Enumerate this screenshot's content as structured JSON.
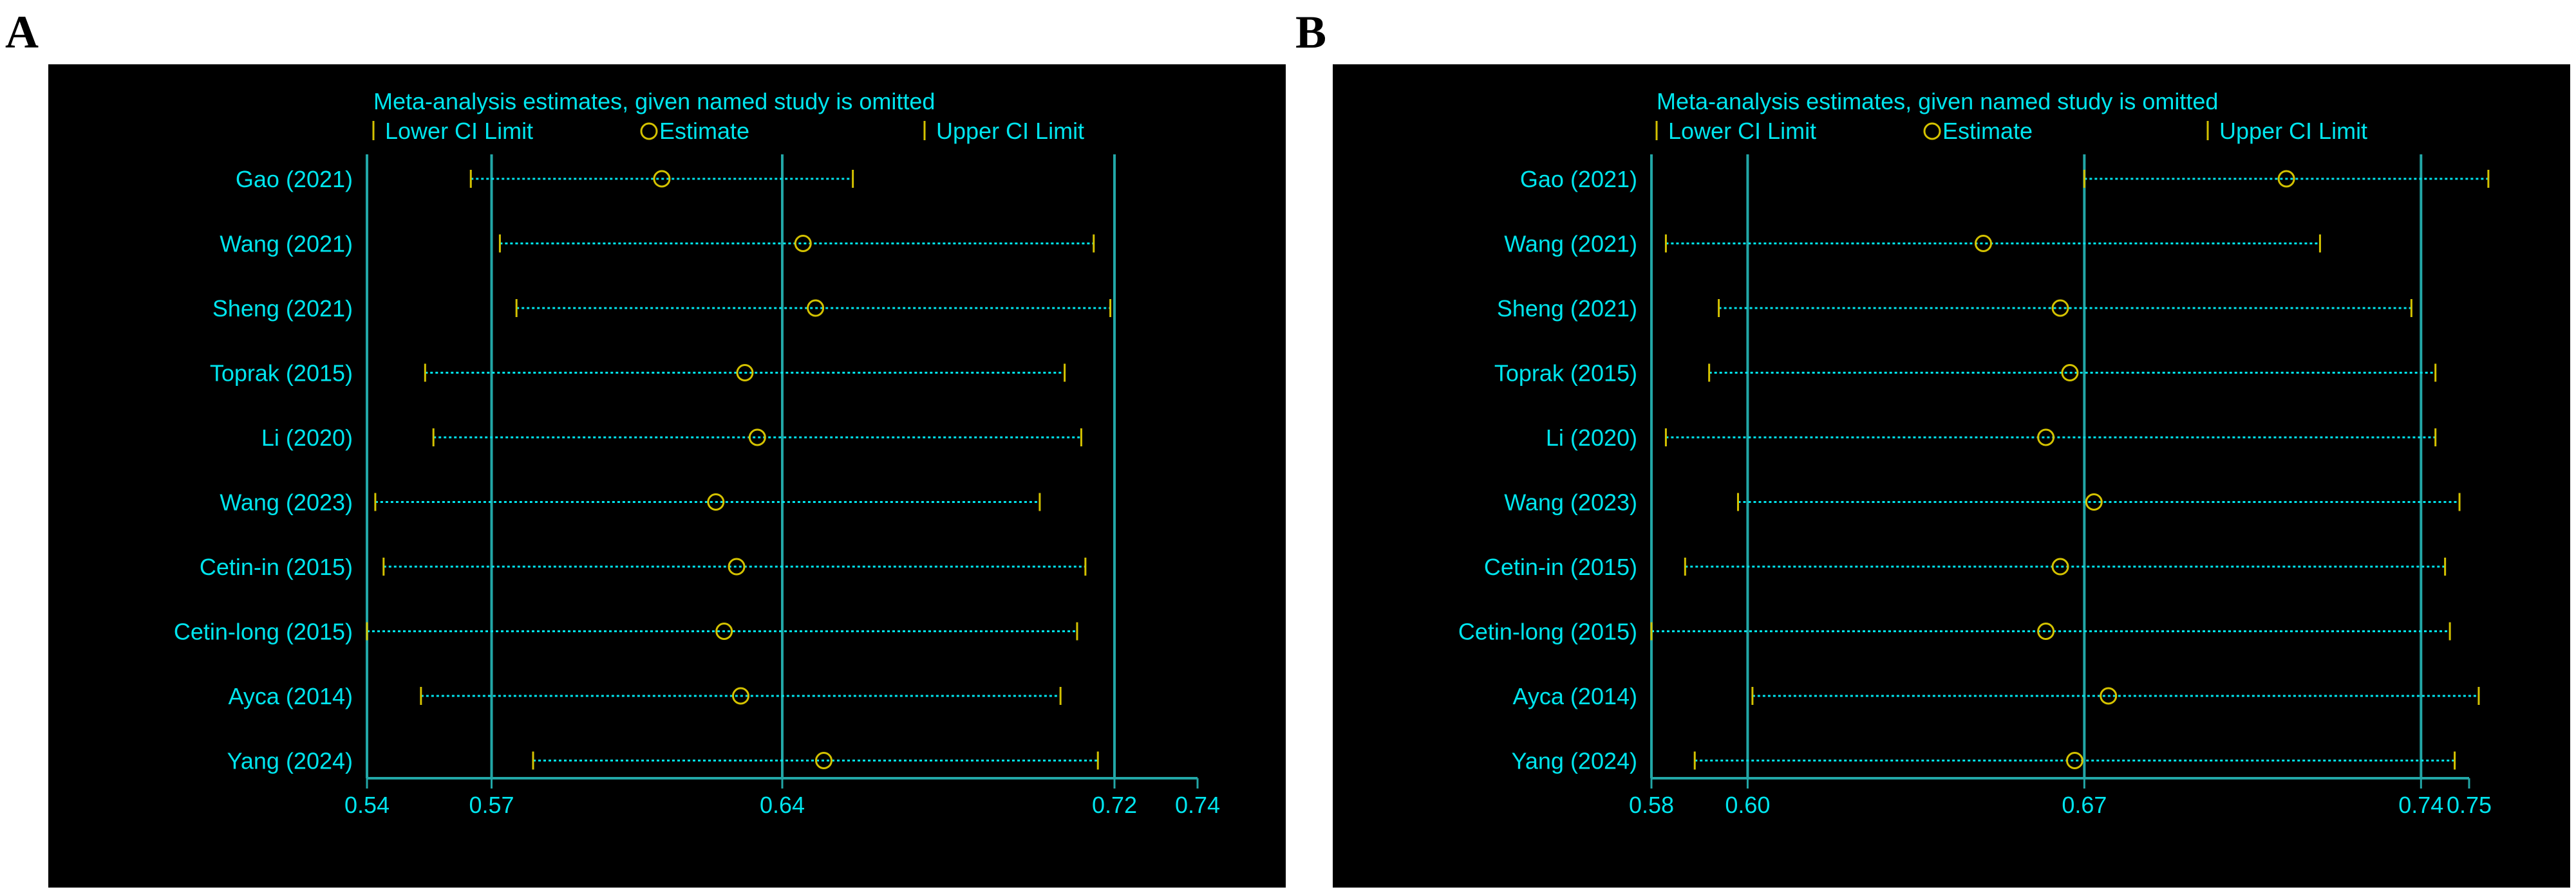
{
  "colors": {
    "background": "#000000",
    "text": "#00e5ee",
    "estimate": "#d4c200",
    "ci": "#00e5ee",
    "refline": "#22a7a7"
  },
  "legend": {
    "title": "Meta-analysis estimates, given named study is omitted",
    "lower": "Lower CI Limit",
    "estimate": "Estimate",
    "upper": "Upper CI Limit"
  },
  "chart_data": [
    {
      "panel": "A",
      "type": "scatter",
      "subtype": "forest-sensitivity",
      "title": "Meta-analysis estimates, given named study is omitted",
      "xlim": [
        0.54,
        0.74
      ],
      "ticks": [
        {
          "value": 0.54,
          "label": "0.54"
        },
        {
          "value": 0.57,
          "label": "0.57"
        },
        {
          "value": 0.64,
          "label": "0.64"
        },
        {
          "value": 0.72,
          "label": "0.72"
        },
        {
          "value": 0.74,
          "label": "0.74"
        }
      ],
      "ref_lines": [
        0.57,
        0.64,
        0.72
      ],
      "studies": [
        {
          "label": "Gao (2021)",
          "lower": 0.565,
          "estimate": 0.611,
          "upper": 0.657
        },
        {
          "label": "Wang (2021)",
          "lower": 0.572,
          "estimate": 0.645,
          "upper": 0.715
        },
        {
          "label": "Sheng (2021)",
          "lower": 0.576,
          "estimate": 0.648,
          "upper": 0.719
        },
        {
          "label": "Toprak (2015)",
          "lower": 0.554,
          "estimate": 0.631,
          "upper": 0.708
        },
        {
          "label": "Li (2020)",
          "lower": 0.556,
          "estimate": 0.634,
          "upper": 0.712
        },
        {
          "label": "Wang  (2023)",
          "lower": 0.542,
          "estimate": 0.624,
          "upper": 0.702
        },
        {
          "label": "Cetin-in (2015)",
          "lower": 0.544,
          "estimate": 0.629,
          "upper": 0.713
        },
        {
          "label": "Cetin-long (2015)",
          "lower": 0.54,
          "estimate": 0.626,
          "upper": 0.711
        },
        {
          "label": "Ayca (2014)",
          "lower": 0.553,
          "estimate": 0.63,
          "upper": 0.707
        },
        {
          "label": "Yang (2024)",
          "lower": 0.58,
          "estimate": 0.65,
          "upper": 0.716
        }
      ]
    },
    {
      "panel": "B",
      "type": "scatter",
      "subtype": "forest-sensitivity",
      "title": "Meta-analysis estimates, given named study is omitted",
      "xlim": [
        0.58,
        0.75
      ],
      "ticks": [
        {
          "value": 0.58,
          "label": "0.58"
        },
        {
          "value": 0.6,
          "label": "0.60"
        },
        {
          "value": 0.67,
          "label": "0.67"
        },
        {
          "value": 0.74,
          "label": "0.74"
        },
        {
          "value": 0.75,
          "label": "0.75"
        }
      ],
      "ref_lines": [
        0.6,
        0.67,
        0.74
      ],
      "studies": [
        {
          "label": "Gao (2021)",
          "lower": 0.67,
          "estimate": 0.712,
          "upper": 0.754
        },
        {
          "label": "Wang (2021)",
          "lower": 0.583,
          "estimate": 0.649,
          "upper": 0.719
        },
        {
          "label": "Sheng (2021)",
          "lower": 0.594,
          "estimate": 0.665,
          "upper": 0.738
        },
        {
          "label": "Toprak (2015)",
          "lower": 0.592,
          "estimate": 0.667,
          "upper": 0.743
        },
        {
          "label": "Li (2020)",
          "lower": 0.583,
          "estimate": 0.662,
          "upper": 0.743
        },
        {
          "label": "Wang  (2023)",
          "lower": 0.598,
          "estimate": 0.672,
          "upper": 0.748
        },
        {
          "label": "Cetin-in (2015)",
          "lower": 0.587,
          "estimate": 0.665,
          "upper": 0.745
        },
        {
          "label": "Cetin-long (2015)",
          "lower": 0.58,
          "estimate": 0.662,
          "upper": 0.746
        },
        {
          "label": "Ayca (2014)",
          "lower": 0.601,
          "estimate": 0.675,
          "upper": 0.752
        },
        {
          "label": "Yang (2024)",
          "lower": 0.589,
          "estimate": 0.668,
          "upper": 0.747
        }
      ]
    }
  ]
}
